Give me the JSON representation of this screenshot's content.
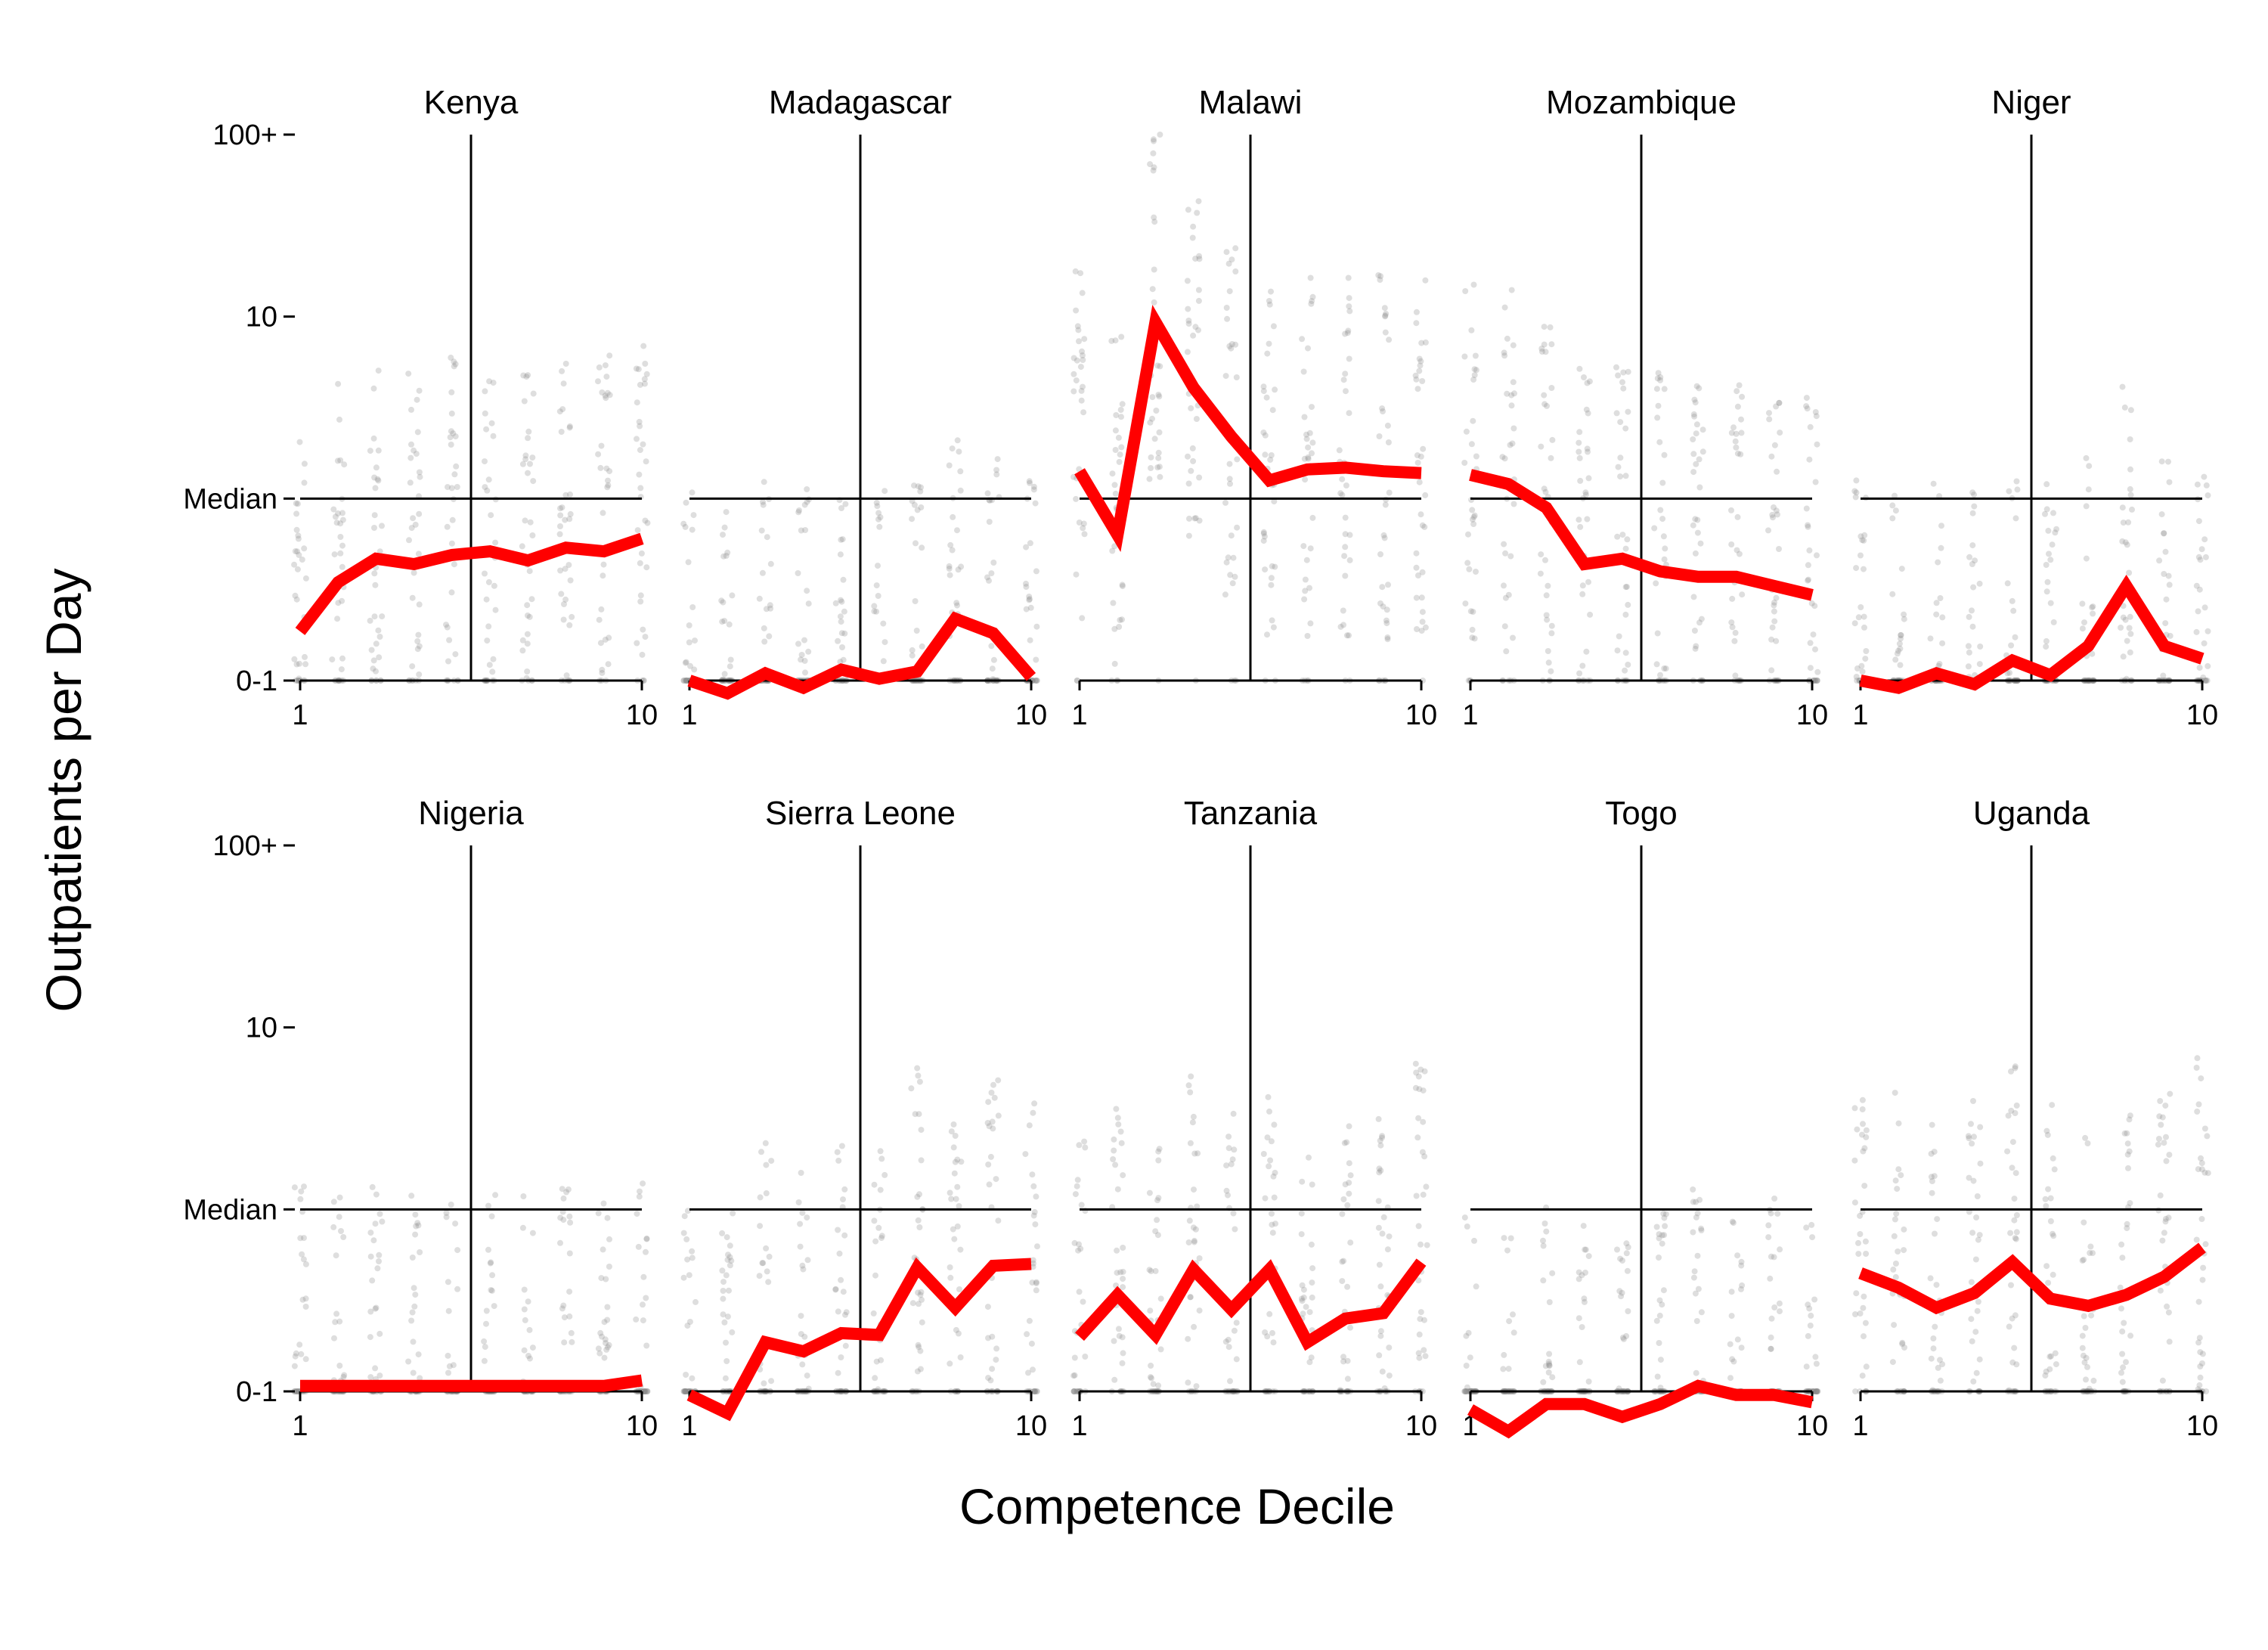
{
  "chart_data": {
    "type": "line",
    "layout": "small-multiples, 2 rows x 5 columns",
    "xlabel": "Competence Decile",
    "ylabel": "Outpatients per Day",
    "x_ticks": [
      "1",
      "10"
    ],
    "x_range": [
      1,
      10
    ],
    "y_scale": "log",
    "y_ticks": [
      "100+",
      "10",
      "Median",
      "0-1"
    ],
    "y_tick_levels": [
      3,
      2,
      1,
      0
    ],
    "y_range": [
      0,
      3
    ],
    "median_marker_line": "horizontal",
    "vertical_reference_x": 5.5,
    "series_color": "#ff0000",
    "point_color": "#888888",
    "x": [
      1,
      2,
      3,
      4,
      5,
      6,
      7,
      8,
      9,
      10
    ],
    "panels": [
      {
        "title": "Kenya",
        "values": [
          0.27,
          0.54,
          0.67,
          0.64,
          0.69,
          0.71,
          0.66,
          0.73,
          0.71,
          0.78
        ]
      },
      {
        "title": "Madagascar",
        "values": [
          0.0,
          -0.07,
          0.04,
          -0.04,
          0.06,
          0.01,
          0.05,
          0.34,
          0.26,
          0.02
        ]
      },
      {
        "title": "Malawi",
        "values": [
          1.15,
          0.8,
          1.97,
          1.61,
          1.34,
          1.1,
          1.16,
          1.17,
          1.15,
          1.14
        ]
      },
      {
        "title": "Mozambique",
        "values": [
          1.13,
          1.08,
          0.95,
          0.64,
          0.67,
          0.6,
          0.57,
          0.57,
          0.52,
          0.47
        ]
      },
      {
        "title": "Niger",
        "values": [
          0.0,
          -0.04,
          0.04,
          -0.02,
          0.11,
          0.03,
          0.19,
          0.52,
          0.19,
          0.12
        ]
      },
      {
        "title": "Nigeria",
        "values": [
          0.03,
          0.03,
          0.03,
          0.03,
          0.03,
          0.03,
          0.03,
          0.03,
          0.03,
          0.06
        ]
      },
      {
        "title": "Sierra Leone",
        "values": [
          -0.02,
          -0.12,
          0.27,
          0.22,
          0.32,
          0.31,
          0.68,
          0.46,
          0.69,
          0.7
        ]
      },
      {
        "title": "Tanzania",
        "values": [
          0.3,
          0.53,
          0.31,
          0.67,
          0.45,
          0.67,
          0.27,
          0.4,
          0.43,
          0.71
        ]
      },
      {
        "title": "Togo",
        "values": [
          -0.1,
          -0.22,
          -0.07,
          -0.07,
          -0.14,
          -0.07,
          0.03,
          -0.02,
          -0.02,
          -0.06
        ]
      },
      {
        "title": "Uganda",
        "values": [
          0.65,
          0.57,
          0.46,
          0.54,
          0.71,
          0.51,
          0.47,
          0.53,
          0.63,
          0.79
        ]
      }
    ]
  }
}
